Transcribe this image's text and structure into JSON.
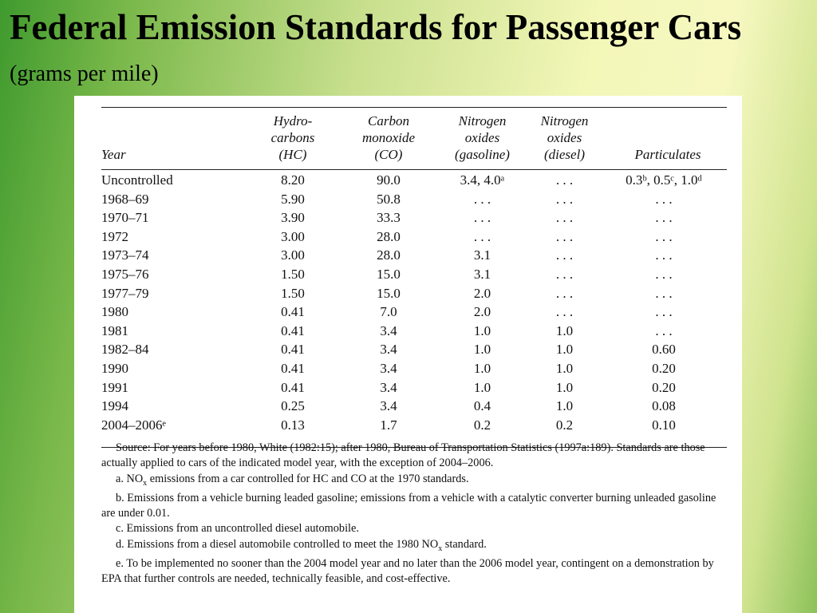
{
  "slide": {
    "title": "Federal Emission Standards for Passenger Cars",
    "subtitle": "(grams per mile)"
  },
  "table": {
    "headers": {
      "year": "Year",
      "hc": [
        "Hydro-",
        "carbons",
        "(HC)"
      ],
      "co": [
        "Carbon",
        "monoxide",
        "(CO)"
      ],
      "nox_gas": [
        "Nitrogen",
        "oxides",
        "(gasoline)"
      ],
      "nox_diesel": [
        "Nitrogen",
        "oxides",
        "(diesel)"
      ],
      "particulates": "Particulates"
    },
    "rows": [
      {
        "year": "Uncontrolled",
        "hc": "8.20",
        "co": "90.0",
        "nox_gas": "3.4, 4.0ᵃ",
        "nox_diesel": ". . .",
        "pm": "0.3ᵇ, 0.5ᶜ, 1.0ᵈ"
      },
      {
        "year": "1968–69",
        "hc": "5.90",
        "co": "50.8",
        "nox_gas": ". . .",
        "nox_diesel": ". . .",
        "pm": ". . ."
      },
      {
        "year": "1970–71",
        "hc": "3.90",
        "co": "33.3",
        "nox_gas": ". . .",
        "nox_diesel": ". . .",
        "pm": ". . ."
      },
      {
        "year": "1972",
        "hc": "3.00",
        "co": "28.0",
        "nox_gas": ". . .",
        "nox_diesel": ". . .",
        "pm": ". . ."
      },
      {
        "year": "1973–74",
        "hc": "3.00",
        "co": "28.0",
        "nox_gas": "3.1",
        "nox_diesel": ". . .",
        "pm": ". . ."
      },
      {
        "year": "1975–76",
        "hc": "1.50",
        "co": "15.0",
        "nox_gas": "3.1",
        "nox_diesel": ". . .",
        "pm": ". . ."
      },
      {
        "year": "1977–79",
        "hc": "1.50",
        "co": "15.0",
        "nox_gas": "2.0",
        "nox_diesel": ". . .",
        "pm": ". . ."
      },
      {
        "year": "1980",
        "hc": "0.41",
        "co": "7.0",
        "nox_gas": "2.0",
        "nox_diesel": ". . .",
        "pm": ". . ."
      },
      {
        "year": "1981",
        "hc": "0.41",
        "co": "3.4",
        "nox_gas": "1.0",
        "nox_diesel": "1.0",
        "pm": ". . ."
      },
      {
        "year": "1982–84",
        "hc": "0.41",
        "co": "3.4",
        "nox_gas": "1.0",
        "nox_diesel": "1.0",
        "pm": "0.60"
      },
      {
        "year": "1990",
        "hc": "0.41",
        "co": "3.4",
        "nox_gas": "1.0",
        "nox_diesel": "1.0",
        "pm": "0.20"
      },
      {
        "year": "1991",
        "hc": "0.41",
        "co": "3.4",
        "nox_gas": "1.0",
        "nox_diesel": "1.0",
        "pm": "0.20"
      },
      {
        "year": "1994",
        "hc": "0.25",
        "co": "3.4",
        "nox_gas": "0.4",
        "nox_diesel": "1.0",
        "pm": "0.08"
      },
      {
        "year": "2004–2006ᵉ",
        "hc": "0.13",
        "co": "1.7",
        "nox_gas": "0.2",
        "nox_diesel": "0.2",
        "pm": "0.10"
      }
    ]
  },
  "notes": {
    "source": "Source: For years before 1980, White (1982:15); after 1980, Bureau of Transportation Statistics (1997a:189). Standards are those actually applied to cars of the indicated model year, with the exception of 2004–2006.",
    "a_prefix": "a. NO",
    "a_sub": "x",
    "a_rest": " emissions from a car controlled for HC and CO at the 1970 standards.",
    "b": "b. Emissions from a vehicle burning leaded gasoline; emissions from a vehicle with a catalytic converter burning unleaded gasoline are under 0.01.",
    "c": "c. Emissions from an uncontrolled diesel automobile.",
    "d_prefix": "d. Emissions from a diesel automobile controlled to meet the 1980 NO",
    "d_sub": "x",
    "d_rest": " standard.",
    "e": "e. To be implemented no sooner than the 2004 model year and no later than the 2006 model year, contingent on a demonstration by EPA that further controls are needed, technically feasible, and cost-effective."
  }
}
